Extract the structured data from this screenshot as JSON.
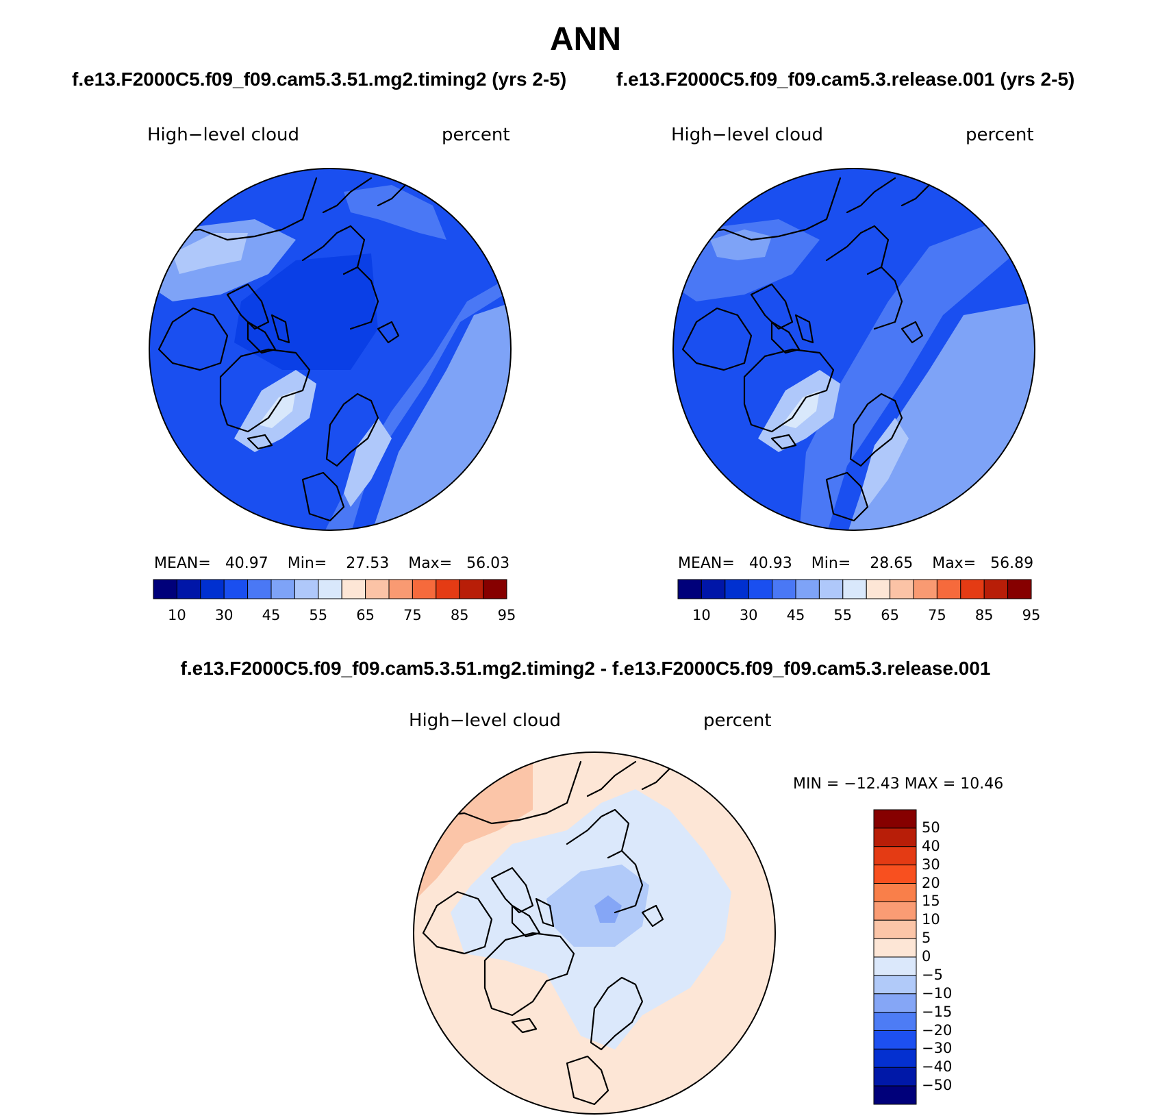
{
  "figure": {
    "title": "ANN",
    "difference_title": "f.e13.F2000C5.f09_f09.cam5.3.51.mg2.timing2 - f.e13.F2000C5.f09_f09.cam5.3.release.001"
  },
  "panels": [
    {
      "case_title": "f.e13.F2000C5.f09_f09.cam5.3.51.mg2.timing2 (yrs 2-5)",
      "variable": "High−level cloud",
      "units": "percent",
      "stats": {
        "mean_label": "MEAN=",
        "mean": "40.97",
        "min_label": "Min=",
        "min": "27.53",
        "max_label": "Max=",
        "max": "56.03"
      }
    },
    {
      "case_title": "f.e13.F2000C5.f09_f09.cam5.3.release.001 (yrs 2-5)",
      "variable": "High−level cloud",
      "units": "percent",
      "stats": {
        "mean_label": "MEAN=",
        "mean": "40.93",
        "min_label": "Min=",
        "min": "28.65",
        "max_label": "Max=",
        "max": "56.89"
      }
    },
    {
      "variable": "High−level cloud",
      "units": "percent",
      "stats_text": "MIN = −12.43 MAX =   10.46"
    }
  ],
  "colorbars": {
    "absolute": {
      "colors": [
        "#00007a",
        "#0016a8",
        "#0030d0",
        "#1a4ff0",
        "#4a78f5",
        "#7ea3f7",
        "#afc8fa",
        "#d9e8fb",
        "#fde6d6",
        "#fbc3a6",
        "#f99a72",
        "#f66a3c",
        "#e43b14",
        "#b81e08",
        "#860000"
      ],
      "tick_labels": [
        "10",
        "30",
        "45",
        "55",
        "65",
        "75",
        "85",
        "95"
      ]
    },
    "difference": {
      "colors_top_to_bottom": [
        "#860000",
        "#b81e08",
        "#e43b14",
        "#f8501f",
        "#f97f4a",
        "#fa9c74",
        "#fbc5a8",
        "#fde6d6",
        "#dbe8fb",
        "#b1caf9",
        "#85a6f6",
        "#4d7cf5",
        "#1d50f0",
        "#0430d0",
        "#0018a8",
        "#00007a"
      ],
      "tick_labels": [
        "50",
        "40",
        "30",
        "20",
        "15",
        "10",
        "5",
        "0",
        "−5",
        "−10",
        "−15",
        "−20",
        "−30",
        "−40",
        "−50"
      ]
    }
  },
  "map_colors": {
    "panel1": {
      "base": "#1a4ff0",
      "dark": "#0a3fe6",
      "mid": "#4a78f5",
      "light": "#7ea3f7",
      "lighter": "#afc8fa",
      "lightest": "#d9e8fb"
    },
    "panel2": {
      "base": "#1a4ff0",
      "dark": "#0a3fe6",
      "mid": "#4a78f5",
      "light": "#7ea3f7",
      "lighter": "#afc8fa",
      "lightest": "#d9e8fb"
    },
    "diff": {
      "base": "#fde6d6",
      "pos": "#fbc5a8",
      "neg": "#dbe8fb",
      "neg2": "#b1caf9",
      "neg3": "#85a6f6"
    }
  }
}
